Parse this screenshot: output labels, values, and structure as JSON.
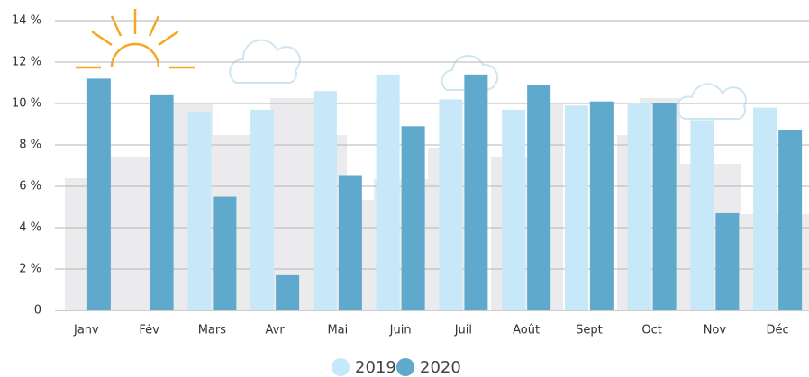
{
  "chart_data": {
    "type": "bar",
    "categories": [
      "Janv",
      "Fév",
      "Mars",
      "Avr",
      "Mai",
      "Juin",
      "Juil",
      "Août",
      "Sept",
      "Oct",
      "Nov",
      "Déc"
    ],
    "series": [
      {
        "name": "2019",
        "color": "#c6e8f8",
        "values": [
          null,
          null,
          9.6,
          9.7,
          10.6,
          11.4,
          10.2,
          9.7,
          9.9,
          10.0,
          9.2,
          9.8
        ]
      },
      {
        "name": "2020",
        "color": "#5fa9cd",
        "values": [
          11.2,
          10.4,
          5.5,
          1.7,
          6.5,
          8.9,
          11.4,
          10.9,
          10.1,
          10.0,
          4.7,
          8.7
        ]
      }
    ],
    "ylim": [
      0,
      14
    ],
    "yticks": [
      {
        "value": 0,
        "label": "0"
      },
      {
        "value": 2,
        "label": "2 %"
      },
      {
        "value": 4,
        "label": "4 %"
      },
      {
        "value": 6,
        "label": "6 %"
      },
      {
        "value": 8,
        "label": "8 %"
      },
      {
        "value": 10,
        "label": "10 %"
      },
      {
        "value": 12,
        "label": "12 %"
      },
      {
        "value": 14,
        "label": "14 %"
      }
    ],
    "grid": true
  }
}
